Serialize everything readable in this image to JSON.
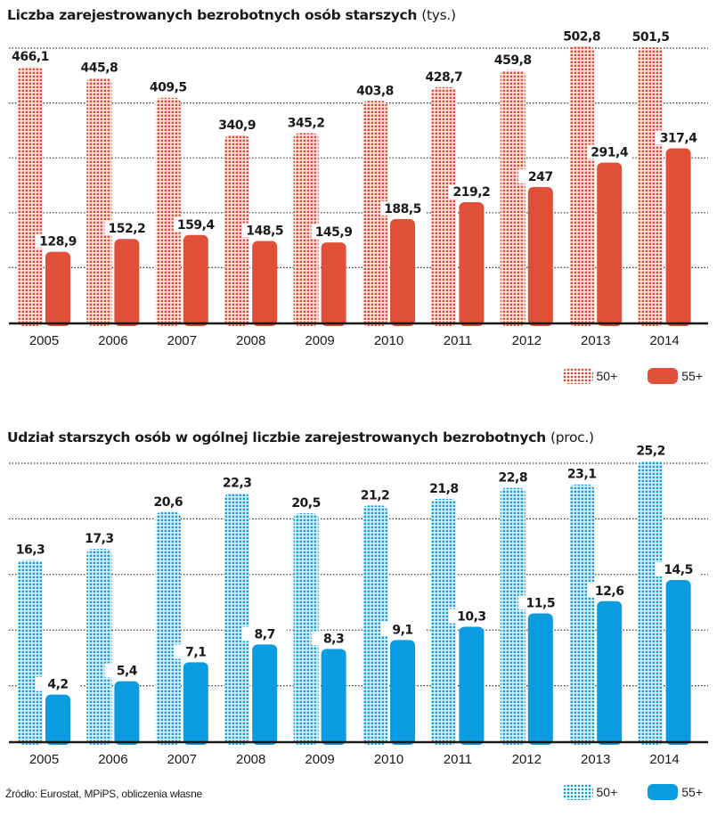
{
  "chart_data": [
    {
      "type": "bar",
      "title": "Liczba zarejestrowanych bezrobotnych osób starszych",
      "unit": "(tys.)",
      "xlabel": "",
      "ylabel": "",
      "ylim": [
        0,
        500
      ],
      "grid": true,
      "gridline_step": 100,
      "legend_position": "bottom-right",
      "categories": [
        "2005",
        "2006",
        "2007",
        "2008",
        "2009",
        "2010",
        "2011",
        "2012",
        "2013",
        "2014"
      ],
      "series": [
        {
          "name": "50+",
          "style": "dotted",
          "color": "#e05038",
          "values": [
            466.1,
            445.8,
            409.5,
            340.9,
            345.2,
            403.8,
            428.7,
            459.8,
            502.8,
            501.5
          ],
          "labels": [
            "466,1",
            "445,8",
            "409,5",
            "340,9",
            "345,2",
            "403,8",
            "428,7",
            "459,8",
            "502,8",
            "501,5"
          ]
        },
        {
          "name": "55+",
          "style": "solid",
          "color": "#e05038",
          "values": [
            128.9,
            152.2,
            159.4,
            148.5,
            145.9,
            188.5,
            219.2,
            247,
            291.4,
            317.4
          ],
          "labels": [
            "128,9",
            "152,2",
            "159,4",
            "148,5",
            "145,9",
            "188,5",
            "219,2",
            "247",
            "291,4",
            "317,4"
          ]
        }
      ]
    },
    {
      "type": "bar",
      "title": "Udział starszych osób w ogólnej liczbie zarejestrowanych bezrobotnych",
      "unit": "(proc.)",
      "xlabel": "",
      "ylabel": "",
      "ylim": [
        0,
        25
      ],
      "grid": true,
      "gridline_step": 5,
      "legend_position": "bottom-right",
      "categories": [
        "2005",
        "2006",
        "2007",
        "2008",
        "2009",
        "2010",
        "2011",
        "2012",
        "2013",
        "2014"
      ],
      "series": [
        {
          "name": "50+",
          "style": "dotted",
          "color": "#1a9fd8",
          "values": [
            16.3,
            17.3,
            20.6,
            22.3,
            20.5,
            21.2,
            21.8,
            22.8,
            23.1,
            25.2
          ],
          "labels": [
            "16,3",
            "17,3",
            "20,6",
            "22,3",
            "20,5",
            "21,2",
            "21,8",
            "22,8",
            "23,1",
            "25,2"
          ]
        },
        {
          "name": "55+",
          "style": "solid",
          "color": "#0b9be0",
          "values": [
            4.2,
            5.4,
            7.1,
            8.7,
            8.3,
            9.1,
            10.3,
            11.5,
            12.6,
            14.5
          ],
          "labels": [
            "4,2",
            "5,4",
            "7,1",
            "8,7",
            "8,3",
            "9,1",
            "10,3",
            "11,5",
            "12,6",
            "14,5"
          ]
        }
      ]
    }
  ],
  "source": "Źródło: Eurostat, MPiPS, obliczenia własne"
}
